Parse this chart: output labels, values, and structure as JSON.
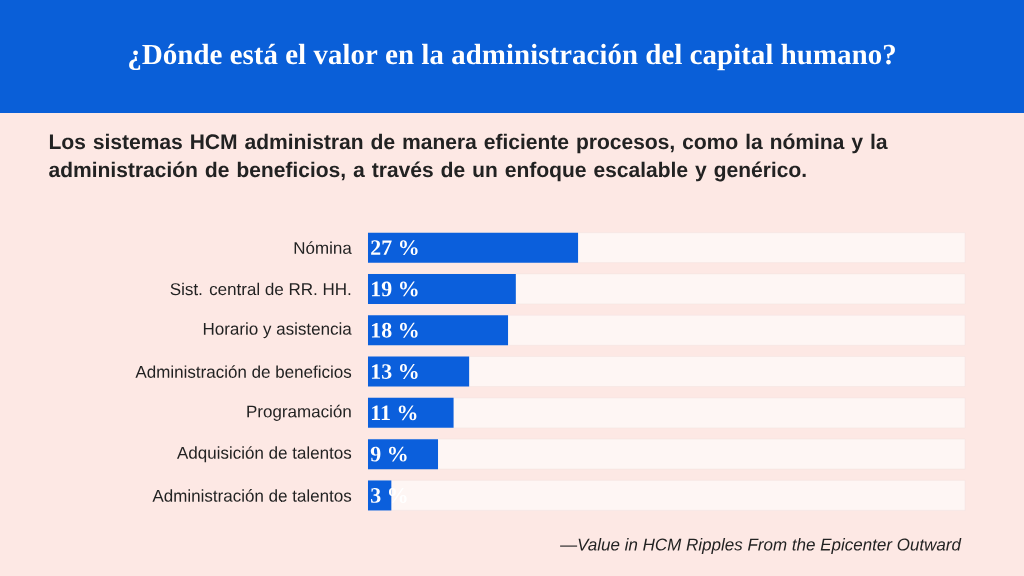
{
  "chart_data": {
    "type": "bar",
    "orientation": "horizontal",
    "title": "¿Dónde está el valor en la administración del capital humano?",
    "subtitle": "Los sistemas HCM administran de manera eficiente procesos, como la nómina y la administración de beneficios, a través de un enfoque escalable y genérico.",
    "categories": [
      "Nómina",
      "Sist. central de RR. HH.",
      "Horario y asistencia",
      "Administración de beneficios",
      "Programación",
      "Adquisición de talentos",
      "Administración de talentos"
    ],
    "values": [
      27,
      19,
      18,
      13,
      11,
      9,
      3
    ],
    "value_labels": [
      "27 %",
      "19 %",
      "18 %",
      "13 %",
      "11 %",
      "9 %",
      "3 %"
    ],
    "color": "#0b5fdc",
    "annotations": [
      "—*Value in HCM Ripples From the Epicenter Outward*"
    ]
  }
}
